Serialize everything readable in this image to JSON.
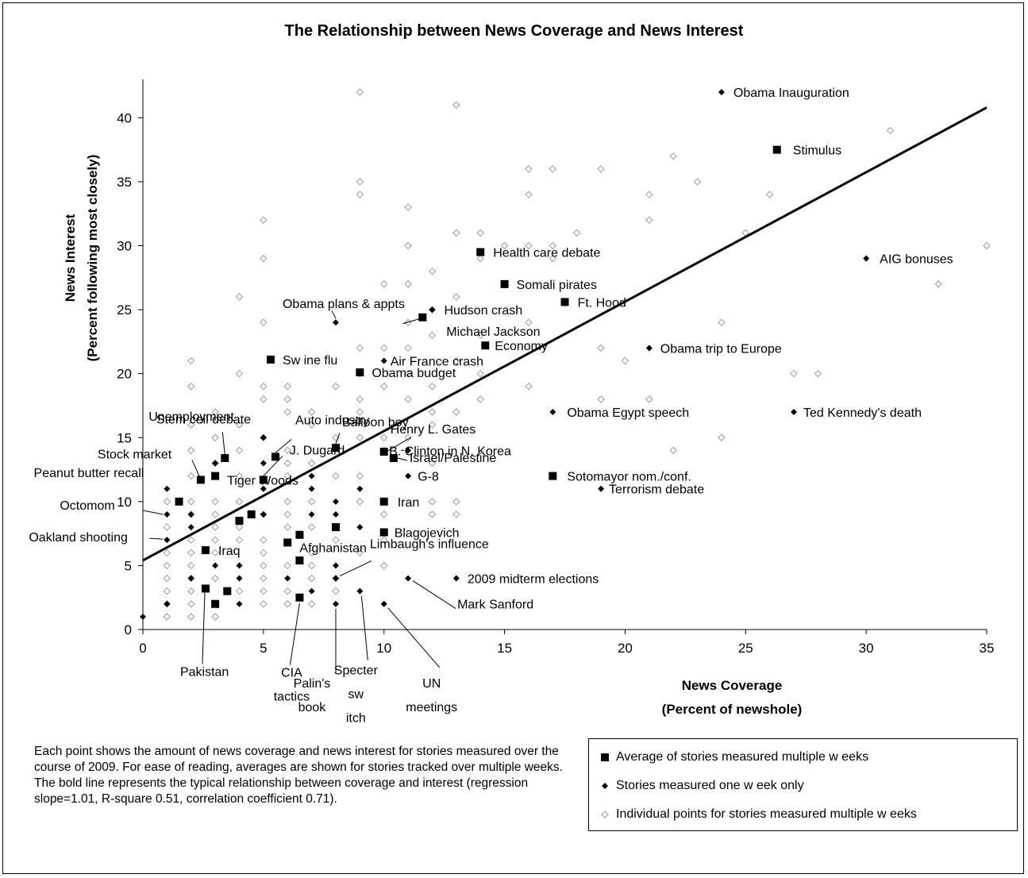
{
  "title": "The Relationship between News Coverage and News Interest",
  "note": "Each point shows the amount of news coverage and news interest for stories measured over the course of 2009. For ease of reading, averages are shown for stories tracked over multiple weeks. The bold line represents the typical relationship between coverage and interest (regression slope=1.01, R-square 0.51, correlation coefficient 0.71).",
  "legend": [
    {
      "marker": "square",
      "label": "Average of stories measured multiple w eeks"
    },
    {
      "marker": "diamond",
      "label": "Stories measured one w eek only"
    },
    {
      "marker": "open-diamond",
      "label": "Individual points for stories measured multiple w eeks"
    }
  ],
  "chart_data": {
    "type": "scatter",
    "title": "The Relationship between News Coverage and News Interest",
    "xlabel": "News Coverage",
    "xlabel_sub": "(Percent of newshole)",
    "ylabel": "News Interest",
    "ylabel_sub": "(Percent following most closely)",
    "xlim": [
      0,
      35
    ],
    "ylim": [
      0,
      43
    ],
    "xticks": [
      0,
      5,
      10,
      15,
      20,
      25,
      30,
      35
    ],
    "yticks": [
      0,
      5,
      10,
      15,
      20,
      25,
      30,
      35,
      40
    ],
    "grid": false,
    "colors": {
      "marker": "#000000",
      "open_marker": "#9a9a9a",
      "line": "#000000"
    },
    "regression": {
      "x": [
        0,
        35
      ],
      "y": [
        5.4,
        40.8
      ],
      "slope": 1.01,
      "r_square": 0.51,
      "correlation": 0.71
    },
    "averages": [
      {
        "label": "Stimulus",
        "x": 26.3,
        "y": 37.5
      },
      {
        "label": "Health care debate",
        "x": 14,
        "y": 29.5
      },
      {
        "label": "Somali pirates",
        "x": 15,
        "y": 27
      },
      {
        "label": "Ft. Hood",
        "x": 17.5,
        "y": 25.6
      },
      {
        "label": "Michael Jackson",
        "x": 11.6,
        "y": 24.4
      },
      {
        "label": "Economy",
        "x": 14.2,
        "y": 22.2
      },
      {
        "label": "Sw ine flu",
        "x": 5.3,
        "y": 21.1
      },
      {
        "label": "Obama budget",
        "x": 9,
        "y": 20.1
      },
      {
        "label": "Balloon boy",
        "x": 8,
        "y": 14.2
      },
      {
        "label": "Henry L. Gates",
        "x": 10,
        "y": 13.9
      },
      {
        "label": "Israel/Palestine",
        "x": 10.4,
        "y": 13.4
      },
      {
        "label": "Auto industry",
        "x": 5.5,
        "y": 13.5
      },
      {
        "label": "Unemployment",
        "x": 3.4,
        "y": 13.4
      },
      {
        "label": "J. Dugard",
        "x": 5,
        "y": 11.7
      },
      {
        "label": "Tiger Woods",
        "x": 3,
        "y": 12
      },
      {
        "label": "Stock market",
        "x": 2.4,
        "y": 11.7
      },
      {
        "label": "Sotomayor nom./conf.",
        "x": 17,
        "y": 12
      },
      {
        "label": "Peanut butter recall",
        "x": 1.5,
        "y": 10
      },
      {
        "label": "Iran",
        "x": 10,
        "y": 10
      },
      {
        "label": "",
        "x": 4.5,
        "y": 9
      },
      {
        "label": "",
        "x": 4,
        "y": 8.5
      },
      {
        "label": "",
        "x": 8,
        "y": 8
      },
      {
        "label": "Blagojevich",
        "x": 10,
        "y": 7.6
      },
      {
        "label": "Afghanistan",
        "x": 6.5,
        "y": 7.4
      },
      {
        "label": "",
        "x": 6,
        "y": 6.8
      },
      {
        "label": "Iraq",
        "x": 2.6,
        "y": 6.2
      },
      {
        "label": "",
        "x": 6.5,
        "y": 5.4
      },
      {
        "label": "Pakistan",
        "x": 2.6,
        "y": 3.2
      },
      {
        "label": "",
        "x": 3.5,
        "y": 3
      },
      {
        "label": "",
        "x": 3,
        "y": 2
      },
      {
        "label": "CIA tactics",
        "x": 6.5,
        "y": 2.5
      }
    ],
    "one_week": [
      {
        "label": "Obama Inauguration",
        "x": 24,
        "y": 42
      },
      {
        "label": "AIG bonuses",
        "x": 30,
        "y": 29
      },
      {
        "label": "Obama plans & appts",
        "x": 8,
        "y": 24
      },
      {
        "label": "Hudson crash",
        "x": 12,
        "y": 25
      },
      {
        "label": "Obama trip to Europe",
        "x": 21,
        "y": 22
      },
      {
        "label": "Air France crash",
        "x": 10,
        "y": 21
      },
      {
        "label": "Obama Egypt speech",
        "x": 17,
        "y": 17
      },
      {
        "label": "Ted Kennedy's death",
        "x": 27,
        "y": 17
      },
      {
        "label": "Stem cell debate",
        "x": 5,
        "y": 15
      },
      {
        "label": "B. Clinton in N. Korea",
        "x": 11,
        "y": 14
      },
      {
        "label": "G-8",
        "x": 11,
        "y": 12
      },
      {
        "label": "Terrorism debate",
        "x": 19,
        "y": 11
      },
      {
        "label": "Octomom",
        "x": 1,
        "y": 9
      },
      {
        "label": "Oakland shooting",
        "x": 1,
        "y": 7
      },
      {
        "label": "Limbaugh's influence",
        "x": 8,
        "y": 4
      },
      {
        "label": "2009 midterm elections",
        "x": 13,
        "y": 4
      },
      {
        "label": "Mark Sanford",
        "x": 11,
        "y": 4
      },
      {
        "label": "Palin's book",
        "x": 8,
        "y": 2
      },
      {
        "label": "Specter sw itch",
        "x": 9,
        "y": 3
      },
      {
        "label": "UN meetings",
        "x": 10,
        "y": 2
      },
      {
        "label": "",
        "x": 0,
        "y": 1
      },
      {
        "label": "",
        "x": 1,
        "y": 11
      },
      {
        "label": "",
        "x": 1,
        "y": 2
      },
      {
        "label": "",
        "x": 2,
        "y": 9
      },
      {
        "label": "",
        "x": 2,
        "y": 8
      },
      {
        "label": "",
        "x": 2,
        "y": 4
      },
      {
        "label": "",
        "x": 3,
        "y": 13
      },
      {
        "label": "",
        "x": 3,
        "y": 5
      },
      {
        "label": "",
        "x": 4,
        "y": 5
      },
      {
        "label": "",
        "x": 4,
        "y": 4
      },
      {
        "label": "",
        "x": 4,
        "y": 2
      },
      {
        "label": "",
        "x": 5,
        "y": 13
      },
      {
        "label": "",
        "x": 5,
        "y": 11
      },
      {
        "label": "",
        "x": 5,
        "y": 9
      },
      {
        "label": "",
        "x": 6,
        "y": 4
      },
      {
        "label": "",
        "x": 7,
        "y": 12
      },
      {
        "label": "",
        "x": 7,
        "y": 11
      },
      {
        "label": "",
        "x": 7,
        "y": 9
      },
      {
        "label": "",
        "x": 7,
        "y": 3
      },
      {
        "label": "",
        "x": 8,
        "y": 10
      },
      {
        "label": "",
        "x": 8,
        "y": 9
      },
      {
        "label": "",
        "x": 8,
        "y": 5
      },
      {
        "label": "",
        "x": 9,
        "y": 11
      },
      {
        "label": "",
        "x": 9,
        "y": 8
      }
    ],
    "individual": [
      {
        "x": 9,
        "y": 42
      },
      {
        "x": 13,
        "y": 41
      },
      {
        "x": 31,
        "y": 39
      },
      {
        "x": 22,
        "y": 37
      },
      {
        "x": 16,
        "y": 36
      },
      {
        "x": 17,
        "y": 36
      },
      {
        "x": 19,
        "y": 36
      },
      {
        "x": 9,
        "y": 35
      },
      {
        "x": 23,
        "y": 35
      },
      {
        "x": 9,
        "y": 34
      },
      {
        "x": 16,
        "y": 34
      },
      {
        "x": 21,
        "y": 34
      },
      {
        "x": 26,
        "y": 34
      },
      {
        "x": 11,
        "y": 33
      },
      {
        "x": 5,
        "y": 32
      },
      {
        "x": 21,
        "y": 32
      },
      {
        "x": 13,
        "y": 31
      },
      {
        "x": 14,
        "y": 31
      },
      {
        "x": 18,
        "y": 31
      },
      {
        "x": 25,
        "y": 31
      },
      {
        "x": 11,
        "y": 30
      },
      {
        "x": 15,
        "y": 30
      },
      {
        "x": 16,
        "y": 30
      },
      {
        "x": 17,
        "y": 30
      },
      {
        "x": 35,
        "y": 30
      },
      {
        "x": 5,
        "y": 29
      },
      {
        "x": 14,
        "y": 29
      },
      {
        "x": 17,
        "y": 29
      },
      {
        "x": 12,
        "y": 28
      },
      {
        "x": 10,
        "y": 27
      },
      {
        "x": 11,
        "y": 27
      },
      {
        "x": 33,
        "y": 27
      },
      {
        "x": 4,
        "y": 26
      },
      {
        "x": 13,
        "y": 26
      },
      {
        "x": 12,
        "y": 25
      },
      {
        "x": 5,
        "y": 24
      },
      {
        "x": 11,
        "y": 24
      },
      {
        "x": 16,
        "y": 24
      },
      {
        "x": 24,
        "y": 24
      },
      {
        "x": 12,
        "y": 23
      },
      {
        "x": 14,
        "y": 23
      },
      {
        "x": 9,
        "y": 22
      },
      {
        "x": 10,
        "y": 22
      },
      {
        "x": 11,
        "y": 22
      },
      {
        "x": 19,
        "y": 22
      },
      {
        "x": 13,
        "y": 21
      },
      {
        "x": 20,
        "y": 21
      },
      {
        "x": 2,
        "y": 21
      },
      {
        "x": 4,
        "y": 20
      },
      {
        "x": 9,
        "y": 20
      },
      {
        "x": 11,
        "y": 20
      },
      {
        "x": 14,
        "y": 20
      },
      {
        "x": 27,
        "y": 20
      },
      {
        "x": 28,
        "y": 20
      },
      {
        "x": 2,
        "y": 19
      },
      {
        "x": 5,
        "y": 19
      },
      {
        "x": 6,
        "y": 19
      },
      {
        "x": 8,
        "y": 19
      },
      {
        "x": 10,
        "y": 19
      },
      {
        "x": 12,
        "y": 19
      },
      {
        "x": 16,
        "y": 19
      },
      {
        "x": 5,
        "y": 18
      },
      {
        "x": 6,
        "y": 18
      },
      {
        "x": 9,
        "y": 18
      },
      {
        "x": 11,
        "y": 18
      },
      {
        "x": 14,
        "y": 18
      },
      {
        "x": 19,
        "y": 18
      },
      {
        "x": 21,
        "y": 18
      },
      {
        "x": 3,
        "y": 17
      },
      {
        "x": 6,
        "y": 17
      },
      {
        "x": 7,
        "y": 17
      },
      {
        "x": 9,
        "y": 17
      },
      {
        "x": 12,
        "y": 17
      },
      {
        "x": 13,
        "y": 17
      },
      {
        "x": 2,
        "y": 16
      },
      {
        "x": 4,
        "y": 16
      },
      {
        "x": 7,
        "y": 16
      },
      {
        "x": 12,
        "y": 16
      },
      {
        "x": 3,
        "y": 15
      },
      {
        "x": 5,
        "y": 15
      },
      {
        "x": 8,
        "y": 15
      },
      {
        "x": 9,
        "y": 15
      },
      {
        "x": 10,
        "y": 15
      },
      {
        "x": 11,
        "y": 15
      },
      {
        "x": 24,
        "y": 15
      },
      {
        "x": 2,
        "y": 14
      },
      {
        "x": 4,
        "y": 14
      },
      {
        "x": 6,
        "y": 14
      },
      {
        "x": 10,
        "y": 14
      },
      {
        "x": 22,
        "y": 14
      },
      {
        "x": 3,
        "y": 13
      },
      {
        "x": 6,
        "y": 13
      },
      {
        "x": 7,
        "y": 13
      },
      {
        "x": 12,
        "y": 13
      },
      {
        "x": 2,
        "y": 12
      },
      {
        "x": 4,
        "y": 12
      },
      {
        "x": 6,
        "y": 12
      },
      {
        "x": 8,
        "y": 12
      },
      {
        "x": 9,
        "y": 12
      },
      {
        "x": 1,
        "y": 10
      },
      {
        "x": 2,
        "y": 10
      },
      {
        "x": 3,
        "y": 10
      },
      {
        "x": 4,
        "y": 10
      },
      {
        "x": 6,
        "y": 10
      },
      {
        "x": 7,
        "y": 10
      },
      {
        "x": 9,
        "y": 10
      },
      {
        "x": 12,
        "y": 10
      },
      {
        "x": 13,
        "y": 10
      },
      {
        "x": 2,
        "y": 9
      },
      {
        "x": 3,
        "y": 9
      },
      {
        "x": 5,
        "y": 9
      },
      {
        "x": 6,
        "y": 9
      },
      {
        "x": 10,
        "y": 9
      },
      {
        "x": 12,
        "y": 9
      },
      {
        "x": 13,
        "y": 9
      },
      {
        "x": 1,
        "y": 8
      },
      {
        "x": 3,
        "y": 8
      },
      {
        "x": 4,
        "y": 8
      },
      {
        "x": 6,
        "y": 8
      },
      {
        "x": 7,
        "y": 8
      },
      {
        "x": 2,
        "y": 7
      },
      {
        "x": 3,
        "y": 7
      },
      {
        "x": 4,
        "y": 7
      },
      {
        "x": 5,
        "y": 7
      },
      {
        "x": 8,
        "y": 7
      },
      {
        "x": 10,
        "y": 7
      },
      {
        "x": 1,
        "y": 6
      },
      {
        "x": 2,
        "y": 6
      },
      {
        "x": 3,
        "y": 6
      },
      {
        "x": 5,
        "y": 6
      },
      {
        "x": 7,
        "y": 6
      },
      {
        "x": 9,
        "y": 6
      },
      {
        "x": 1,
        "y": 5
      },
      {
        "x": 2,
        "y": 5
      },
      {
        "x": 5,
        "y": 5
      },
      {
        "x": 6,
        "y": 5
      },
      {
        "x": 7,
        "y": 5
      },
      {
        "x": 10,
        "y": 5
      },
      {
        "x": 1,
        "y": 4
      },
      {
        "x": 2,
        "y": 4
      },
      {
        "x": 3,
        "y": 4
      },
      {
        "x": 5,
        "y": 4
      },
      {
        "x": 7,
        "y": 4
      },
      {
        "x": 8,
        "y": 4
      },
      {
        "x": 1,
        "y": 3
      },
      {
        "x": 2,
        "y": 3
      },
      {
        "x": 4,
        "y": 3
      },
      {
        "x": 5,
        "y": 3
      },
      {
        "x": 6,
        "y": 3
      },
      {
        "x": 8,
        "y": 3
      },
      {
        "x": 1,
        "y": 2
      },
      {
        "x": 2,
        "y": 2
      },
      {
        "x": 3,
        "y": 2
      },
      {
        "x": 5,
        "y": 2
      },
      {
        "x": 6,
        "y": 2
      },
      {
        "x": 7,
        "y": 2
      },
      {
        "x": 1,
        "y": 1
      },
      {
        "x": 2,
        "y": 1
      },
      {
        "x": 3,
        "y": 1
      }
    ]
  }
}
